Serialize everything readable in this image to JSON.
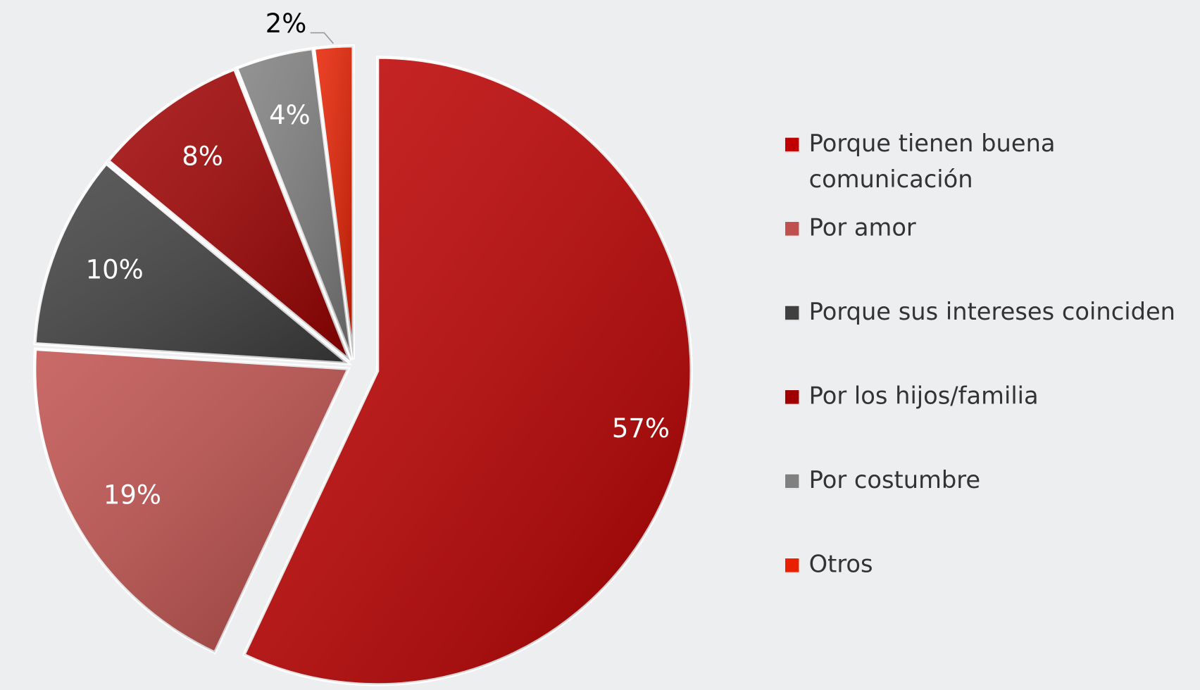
{
  "chart_data": {
    "type": "pie",
    "categories": [
      "Porque tienen buena comunicación",
      "Por amor",
      "Porque sus intereses coinciden",
      "Por los hijos/familia",
      "Por costumbre",
      "Otros"
    ],
    "values": [
      57,
      19,
      10,
      8,
      4,
      2
    ],
    "value_labels": [
      "57%",
      "19%",
      "10%",
      "8%",
      "4%",
      "2%"
    ],
    "colors": [
      "#c00000",
      "#c0504d",
      "#404040",
      "#a00000",
      "#808080",
      "#e82000"
    ],
    "legend": "right"
  }
}
